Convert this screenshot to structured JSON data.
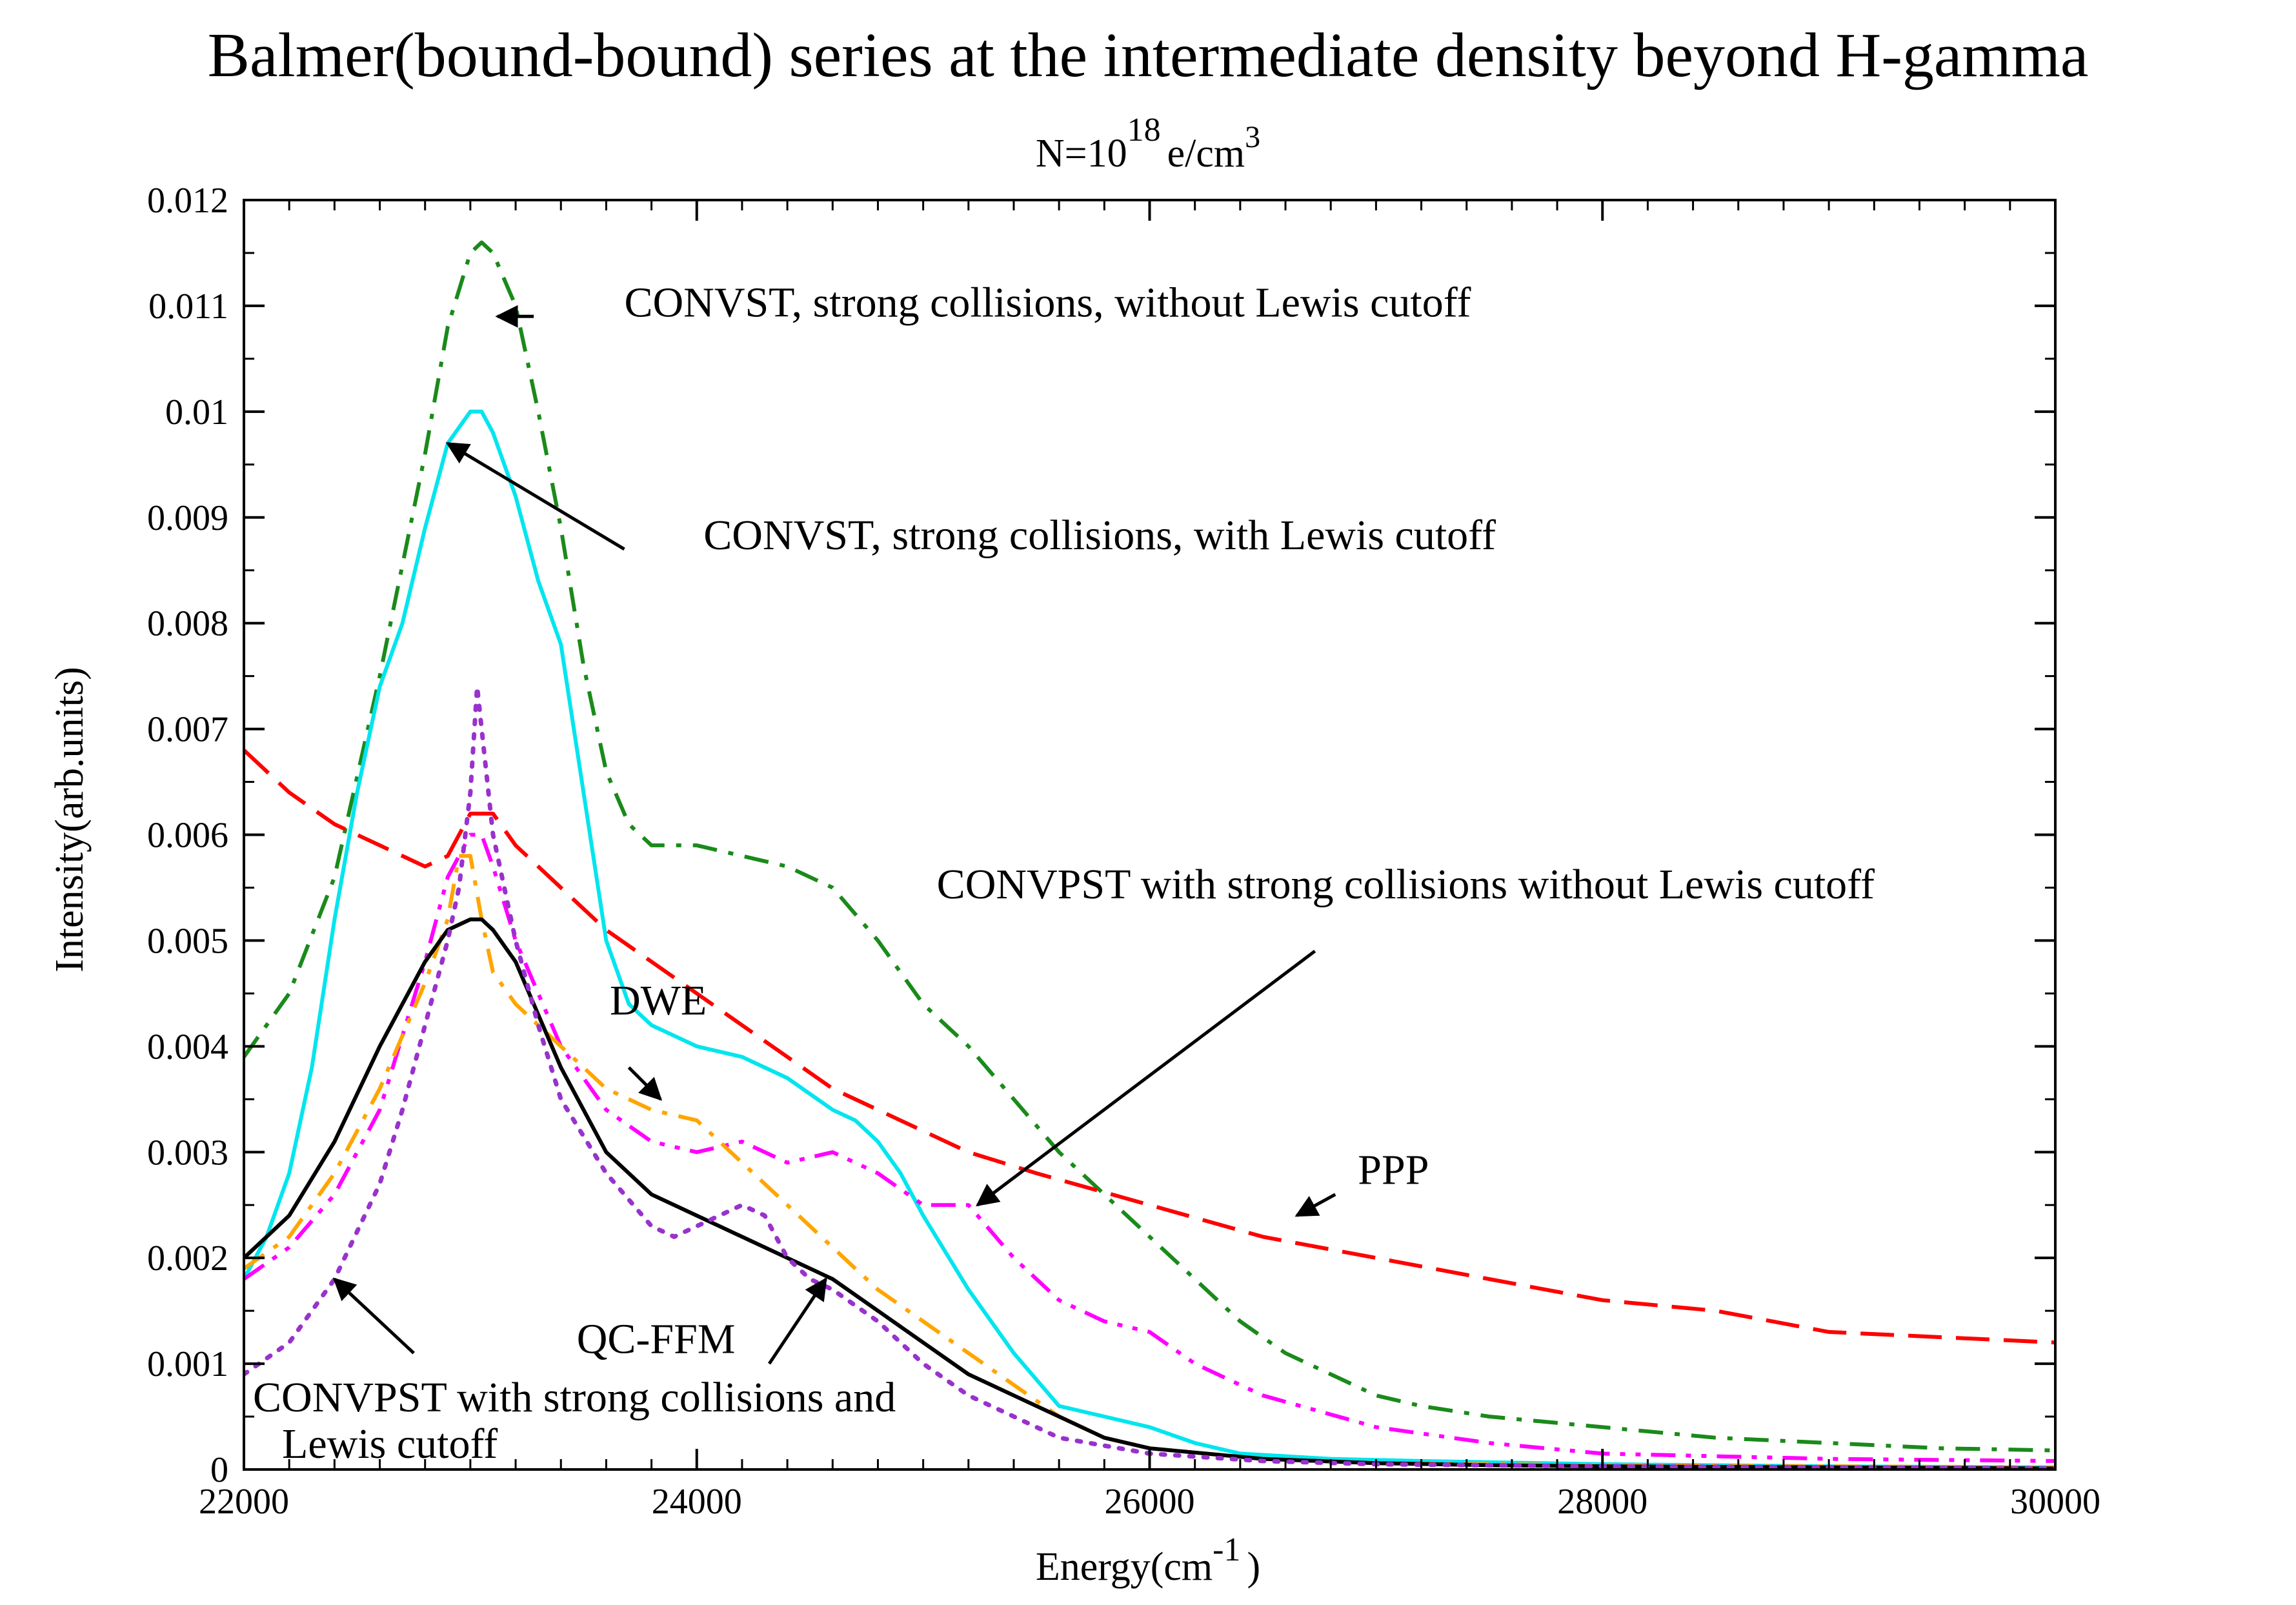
{
  "chart_data": {
    "type": "line",
    "title": "Balmer(bound-bound) series at the intermediate density beyond H-gamma",
    "subtitle": {
      "prefix": "N=10",
      "exponent": "18",
      "unit": "e/cm",
      "unit_exponent": "3"
    },
    "xlabel": {
      "text": "Energy(cm",
      "superscript": "-1",
      "close": ")"
    },
    "ylabel": "Intensity(arb.units)",
    "xlim": [
      22000,
      30000
    ],
    "ylim": [
      0,
      0.012
    ],
    "xticks": [
      22000,
      24000,
      26000,
      28000,
      30000
    ],
    "xtick_labels": [
      "22000",
      "24000",
      "26000",
      "28000",
      "30000"
    ],
    "yticks": [
      0,
      0.001,
      0.002,
      0.003,
      0.004,
      0.005,
      0.006,
      0.007,
      0.008,
      0.009,
      0.01,
      0.011,
      0.012
    ],
    "ytick_labels": [
      "0",
      "0.001",
      "0.002",
      "0.003",
      "0.004",
      "0.005",
      "0.006",
      "0.007",
      "0.008",
      "0.009",
      "0.01",
      "0.011",
      "0.012"
    ],
    "grid": false,
    "series": [
      {
        "name": "CONVST, strong collisions, without Lewis cutoff",
        "color": "#1a8a1a",
        "style": "dashdot",
        "x": [
          22000,
          22200,
          22400,
          22600,
          22800,
          22900,
          23000,
          23050,
          23100,
          23200,
          23300,
          23400,
          23500,
          23600,
          23700,
          23800,
          24000,
          24200,
          24400,
          24600,
          24800,
          25000,
          25200,
          25400,
          25600,
          25800,
          26000,
          26200,
          26400,
          26600,
          26800,
          27000,
          27200,
          27500,
          28000,
          28500,
          29000,
          29500,
          30000
        ],
        "y": [
          0.0039,
          0.0045,
          0.0056,
          0.0075,
          0.0096,
          0.0108,
          0.0115,
          0.0116,
          0.0115,
          0.011,
          0.01,
          0.0089,
          0.0076,
          0.0066,
          0.0061,
          0.0059,
          0.0059,
          0.0058,
          0.0057,
          0.0055,
          0.005,
          0.0044,
          0.004,
          0.0035,
          0.003,
          0.0026,
          0.0022,
          0.0018,
          0.0014,
          0.0011,
          0.0009,
          0.0007,
          0.0006,
          0.0005,
          0.0004,
          0.0003,
          0.00025,
          0.0002,
          0.00018
        ]
      },
      {
        "name": "CONVST, strong collisions, with Lewis cutoff",
        "color": "#00e5ee",
        "style": "solid",
        "x": [
          22000,
          22100,
          22200,
          22300,
          22400,
          22500,
          22600,
          22700,
          22800,
          22900,
          23000,
          23050,
          23100,
          23200,
          23300,
          23400,
          23500,
          23600,
          23700,
          23800,
          24000,
          24200,
          24400,
          24600,
          24700,
          24800,
          24900,
          25000,
          25200,
          25400,
          25600,
          25800,
          26000,
          26200,
          26400,
          26800,
          27200,
          28000,
          29000,
          30000
        ],
        "y": [
          0.0018,
          0.0022,
          0.0028,
          0.0038,
          0.0052,
          0.0064,
          0.0074,
          0.008,
          0.0089,
          0.0097,
          0.01,
          0.01,
          0.0098,
          0.0092,
          0.0084,
          0.0078,
          0.0064,
          0.005,
          0.0044,
          0.0042,
          0.004,
          0.0039,
          0.0037,
          0.0034,
          0.0033,
          0.0031,
          0.0028,
          0.0024,
          0.0017,
          0.0011,
          0.0006,
          0.0005,
          0.0004,
          0.00025,
          0.00015,
          0.0001,
          8e-05,
          5e-05,
          3e-05,
          2e-05
        ]
      },
      {
        "name": "PPP",
        "color": "#ff0000",
        "style": "longdash",
        "x": [
          22000,
          22200,
          22400,
          22600,
          22800,
          22900,
          23000,
          23100,
          23200,
          23400,
          23600,
          23800,
          24000,
          24200,
          24400,
          24600,
          24800,
          25000,
          25200,
          25500,
          26000,
          26500,
          27000,
          27500,
          28000,
          28500,
          29000,
          29500,
          30000
        ],
        "y": [
          0.0068,
          0.0064,
          0.0061,
          0.0059,
          0.0057,
          0.0058,
          0.0062,
          0.0062,
          0.0059,
          0.0055,
          0.0051,
          0.0048,
          0.0045,
          0.0042,
          0.0039,
          0.0036,
          0.0034,
          0.0032,
          0.003,
          0.0028,
          0.0025,
          0.0022,
          0.002,
          0.0018,
          0.0016,
          0.0015,
          0.0013,
          0.00125,
          0.0012
        ]
      },
      {
        "name": "CONVPST with strong collisions without Lewis cutoff",
        "color": "#ff00ff",
        "style": "dashdotdot",
        "x": [
          22000,
          22200,
          22400,
          22600,
          22800,
          22900,
          23000,
          23050,
          23100,
          23200,
          23400,
          23600,
          23800,
          24000,
          24200,
          24400,
          24600,
          24800,
          25000,
          25200,
          25400,
          25600,
          25800,
          26000,
          26200,
          26500,
          27000,
          27500,
          28000,
          29000,
          30000
        ],
        "y": [
          0.0018,
          0.0021,
          0.0026,
          0.0034,
          0.0048,
          0.0056,
          0.006,
          0.006,
          0.0057,
          0.005,
          0.004,
          0.0034,
          0.0031,
          0.003,
          0.0031,
          0.0029,
          0.003,
          0.0028,
          0.0025,
          0.0025,
          0.002,
          0.0016,
          0.0014,
          0.0013,
          0.001,
          0.0007,
          0.0004,
          0.00025,
          0.00015,
          0.0001,
          8e-05
        ]
      },
      {
        "name": "DWE",
        "color": "#ffa500",
        "style": "dashdot",
        "x": [
          22000,
          22200,
          22400,
          22600,
          22800,
          22900,
          22950,
          23000,
          23050,
          23100,
          23200,
          23400,
          23600,
          23800,
          24000,
          24200,
          24400,
          24600,
          24800,
          25000,
          25200,
          25400,
          25600,
          25800,
          26000,
          26500,
          27000,
          28000,
          29000,
          30000
        ],
        "y": [
          0.0019,
          0.0022,
          0.0028,
          0.0036,
          0.0046,
          0.0052,
          0.0058,
          0.0058,
          0.0052,
          0.0047,
          0.0044,
          0.004,
          0.0036,
          0.0034,
          0.0033,
          0.0029,
          0.0025,
          0.0021,
          0.0017,
          0.0014,
          0.0011,
          0.0008,
          0.0005,
          0.0003,
          0.0002,
          0.0001,
          6e-05,
          4e-05,
          3e-05,
          2e-05
        ]
      },
      {
        "name": "QC-FFM",
        "color": "#000000",
        "style": "solid",
        "x": [
          22000,
          22200,
          22400,
          22600,
          22800,
          22900,
          23000,
          23050,
          23100,
          23200,
          23400,
          23600,
          23800,
          24000,
          24200,
          24400,
          24600,
          24800,
          25000,
          25200,
          25400,
          25600,
          25800,
          26000,
          26500,
          27000,
          27500,
          28000,
          29000,
          30000
        ],
        "y": [
          0.002,
          0.0024,
          0.0031,
          0.004,
          0.0048,
          0.0051,
          0.0052,
          0.0052,
          0.0051,
          0.0048,
          0.0038,
          0.003,
          0.0026,
          0.0024,
          0.0022,
          0.002,
          0.0018,
          0.0015,
          0.0012,
          0.0009,
          0.0007,
          0.0005,
          0.0003,
          0.0002,
          0.0001,
          6e-05,
          4e-05,
          3e-05,
          2e-05,
          1e-05
        ]
      },
      {
        "name": "CONVPST with strong collisions and Lewis cutoff",
        "color": "#9932cc",
        "style": "dotted",
        "x": [
          22000,
          22200,
          22400,
          22600,
          22700,
          22800,
          22900,
          22950,
          23000,
          23030,
          23060,
          23100,
          23200,
          23300,
          23400,
          23600,
          23800,
          23900,
          24000,
          24100,
          24200,
          24300,
          24400,
          24500,
          24600,
          24800,
          25000,
          25200,
          25400,
          25600,
          26000,
          26500,
          27000,
          28000,
          29000,
          30000
        ],
        "y": [
          0.0009,
          0.0012,
          0.0018,
          0.0027,
          0.0034,
          0.0042,
          0.005,
          0.0055,
          0.0064,
          0.0074,
          0.0068,
          0.006,
          0.005,
          0.0042,
          0.0035,
          0.0028,
          0.0023,
          0.0022,
          0.0023,
          0.0024,
          0.0025,
          0.0024,
          0.002,
          0.0018,
          0.0017,
          0.0014,
          0.001,
          0.0007,
          0.0005,
          0.0003,
          0.00015,
          8e-05,
          5e-05,
          3e-05,
          2e-05,
          1e-05
        ]
      }
    ],
    "annotations": [
      {
        "id": "convst-no-lewis",
        "text": "CONVST, strong collisions, without Lewis cutoff",
        "text_at": [
          23680,
          0.0109
        ],
        "anchor": "start",
        "arrow": {
          "from": [
            23280,
            0.0109
          ],
          "to": [
            23120,
            0.0109
          ]
        }
      },
      {
        "id": "convst-lewis",
        "text": "CONVST, strong collisions, with Lewis cutoff",
        "text_at": [
          24030,
          0.0087
        ],
        "anchor": "start",
        "arrow": {
          "from": [
            23680,
            0.0087
          ],
          "to": [
            22900,
            0.0097
          ]
        }
      },
      {
        "id": "convpst-no-lewis",
        "lines": [
          "CONVPST with strong collisions without Lewis cutoff"
        ],
        "text_at": [
          25060,
          0.0054
        ],
        "anchor": "start",
        "arrow": {
          "from": [
            26730,
            0.0049
          ],
          "to": [
            25240,
            0.0025
          ]
        }
      },
      {
        "id": "dwe",
        "text": "DWE",
        "text_at": [
          23830,
          0.0043
        ],
        "anchor": "middle",
        "arrow": {
          "from": [
            23700,
            0.0038
          ],
          "to": [
            23840,
            0.0035
          ]
        }
      },
      {
        "id": "ppp",
        "text": "PPP",
        "text_at": [
          26920,
          0.0027
        ],
        "anchor": "start",
        "arrow": {
          "from": [
            26820,
            0.0026
          ],
          "to": [
            26650,
            0.0024
          ]
        }
      },
      {
        "id": "qcffm",
        "text": "QC-FFM",
        "text_at": [
          23820,
          0.0011
        ],
        "anchor": "middle",
        "arrow": {
          "from": [
            24320,
            0.001
          ],
          "to": [
            24570,
            0.0018
          ]
        }
      },
      {
        "id": "convpst-lewis",
        "lines": [
          "CONVPST with strong collisions and",
          "Lewis cutoff"
        ],
        "text_at": [
          22040,
          0.00055
        ],
        "anchor": "start",
        "arrow": {
          "from": [
            22750,
            0.0011
          ],
          "to": [
            22400,
            0.0018
          ]
        }
      }
    ]
  }
}
